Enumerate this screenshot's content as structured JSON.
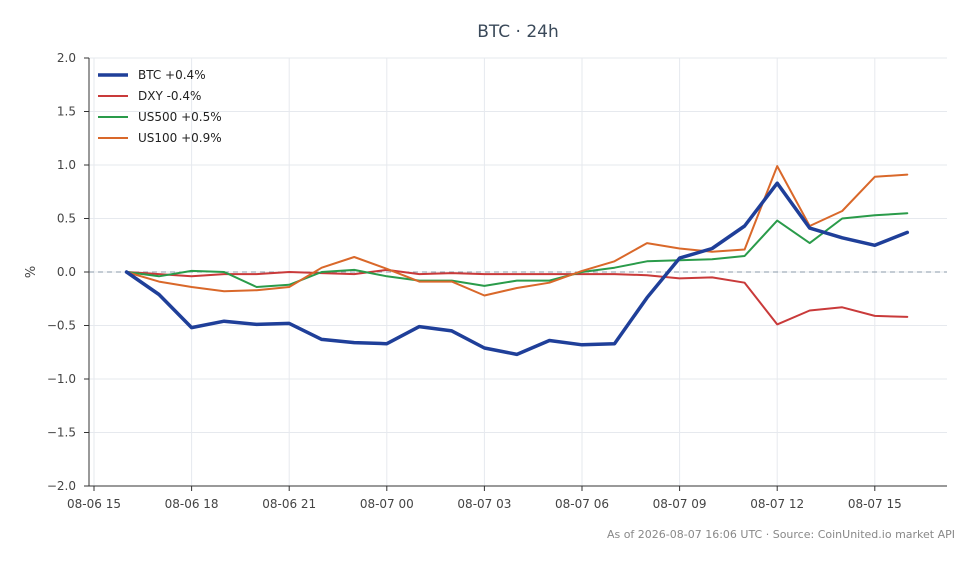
{
  "chart_data": {
    "type": "line",
    "title": "BTC · 24h",
    "xlabel": "",
    "ylabel": "%",
    "ylim": [
      -2.0,
      2.0
    ],
    "y_ticks": [
      "2.0",
      "1.5",
      "1.0",
      "0.5",
      "0.0",
      "−0.5",
      "−1.0",
      "−1.5",
      "−2.0"
    ],
    "x_ticks": [
      "08-06 15",
      "08-06 18",
      "08-06 21",
      "08-07 00",
      "08-07 03",
      "08-07 06",
      "08-07 09",
      "08-07 12",
      "08-07 15"
    ],
    "x": [
      "08-06 16",
      "08-06 17",
      "08-06 18",
      "08-06 19",
      "08-06 20",
      "08-06 21",
      "08-06 22",
      "08-06 23",
      "08-07 00",
      "08-07 01",
      "08-07 02",
      "08-07 03",
      "08-07 04",
      "08-07 05",
      "08-07 06",
      "08-07 07",
      "08-07 08",
      "08-07 09",
      "08-07 10",
      "08-07 11",
      "08-07 12",
      "08-07 13",
      "08-07 14",
      "08-07 15",
      "08-07 16"
    ],
    "baseline": 0.0,
    "grid": true,
    "legend_position": "top-left",
    "series": [
      {
        "name": "BTC +0.4%",
        "color": "#1f3f99",
        "width": "bold",
        "values": [
          0.0,
          -0.21,
          -0.52,
          -0.46,
          -0.49,
          -0.48,
          -0.63,
          -0.66,
          -0.67,
          -0.51,
          -0.55,
          -0.71,
          -0.77,
          -0.64,
          -0.68,
          -0.67,
          -0.24,
          0.13,
          0.22,
          0.43,
          0.83,
          0.41,
          0.32,
          0.25,
          0.37
        ]
      },
      {
        "name": "DXY -0.4%",
        "color": "#c93a3a",
        "width": "normal",
        "values": [
          0.0,
          -0.02,
          -0.04,
          -0.02,
          -0.02,
          0.0,
          -0.01,
          -0.02,
          0.02,
          -0.02,
          -0.01,
          -0.02,
          -0.02,
          -0.02,
          -0.02,
          -0.02,
          -0.03,
          -0.06,
          -0.05,
          -0.1,
          -0.49,
          -0.36,
          -0.33,
          -0.41,
          -0.42
        ]
      },
      {
        "name": "US500 +0.5%",
        "color": "#2a9b4a",
        "width": "normal",
        "values": [
          0.0,
          -0.04,
          0.01,
          0.0,
          -0.14,
          -0.12,
          0.0,
          0.02,
          -0.04,
          -0.08,
          -0.08,
          -0.13,
          -0.08,
          -0.08,
          0.0,
          0.04,
          0.1,
          0.11,
          0.12,
          0.15,
          0.48,
          0.27,
          0.5,
          0.53,
          0.55
        ]
      },
      {
        "name": "US100 +0.9%",
        "color": "#d9682a",
        "width": "normal",
        "values": [
          0.0,
          -0.09,
          -0.14,
          -0.18,
          -0.17,
          -0.14,
          0.04,
          0.14,
          0.03,
          -0.09,
          -0.09,
          -0.22,
          -0.15,
          -0.1,
          0.01,
          0.1,
          0.27,
          0.22,
          0.19,
          0.21,
          0.99,
          0.43,
          0.57,
          0.89,
          0.91
        ]
      }
    ]
  },
  "footnote": "As of 2026-08-07 16:06 UTC · Source: CoinUnited.io market API"
}
